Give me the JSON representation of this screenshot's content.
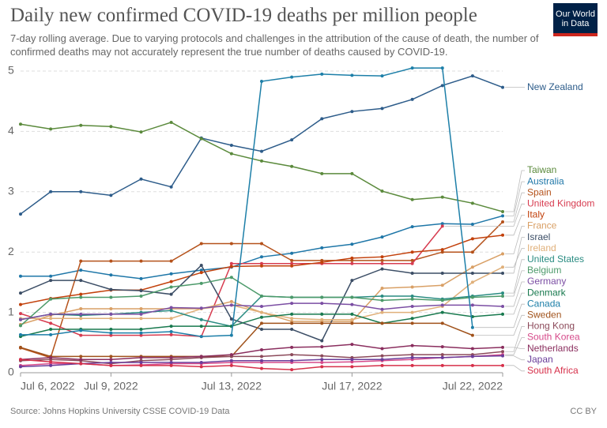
{
  "chart_data": {
    "type": "line",
    "title": "Daily new confirmed COVID-19 deaths per million people",
    "subtitle": "7-day rolling average. Due to varying protocols and challenges in the attribution of the cause of death, the number of confirmed deaths may not accurately represent the true number of deaths caused by COVID-19.",
    "logo": "Our World in Data",
    "source": "Source: Johns Hopkins University CSSE COVID-19 Data",
    "license": "CC BY",
    "x": [
      "2022-07-06",
      "2022-07-07",
      "2022-07-08",
      "2022-07-09",
      "2022-07-10",
      "2022-07-11",
      "2022-07-12",
      "2022-07-13",
      "2022-07-14",
      "2022-07-15",
      "2022-07-16",
      "2022-07-17",
      "2022-07-18",
      "2022-07-19",
      "2022-07-20",
      "2022-07-21",
      "2022-07-22"
    ],
    "xticks": [
      {
        "value": "2022-07-06",
        "label": "Jul 6, 2022"
      },
      {
        "value": "2022-07-09",
        "label": "Jul 9, 2022"
      },
      {
        "value": "2022-07-13",
        "label": "Jul 13, 2022"
      },
      {
        "value": "2022-07-17",
        "label": "Jul 17, 2022"
      },
      {
        "value": "2022-07-22",
        "label": "Jul 22, 2022"
      }
    ],
    "ylim": [
      0,
      5
    ],
    "yticks": [
      0,
      1,
      2,
      3,
      4,
      5
    ],
    "grid": true,
    "series": [
      {
        "name": "New Zealand",
        "color": "#2d5c8a",
        "values": [
          2.63,
          3.0,
          3.0,
          2.94,
          3.21,
          3.08,
          3.89,
          3.77,
          3.67,
          3.86,
          4.21,
          4.33,
          4.38,
          4.53,
          4.76,
          4.92,
          4.73
        ]
      },
      {
        "name": "Taiwan",
        "color": "#5b8a3c",
        "values": [
          4.12,
          4.04,
          4.1,
          4.08,
          3.99,
          4.15,
          3.88,
          3.63,
          3.51,
          3.42,
          3.3,
          3.3,
          3.01,
          2.87,
          2.91,
          2.81,
          2.67
        ]
      },
      {
        "name": "Australia",
        "color": "#1f77a8",
        "values": [
          1.6,
          1.6,
          1.7,
          1.62,
          1.56,
          1.64,
          1.7,
          1.75,
          1.92,
          1.98,
          2.07,
          2.13,
          2.25,
          2.42,
          2.47,
          2.46,
          2.6
        ]
      },
      {
        "name": "Spain",
        "color": "#b5521b",
        "values": [
          0.41,
          0.25,
          1.85,
          1.85,
          1.85,
          1.85,
          2.14,
          2.14,
          2.14,
          1.86,
          1.86,
          1.86,
          1.86,
          1.86,
          2.0,
          2.0,
          2.5
        ]
      },
      {
        "name": "United Kingdom",
        "color": "#d73c50",
        "values": [
          0.98,
          0.82,
          0.62,
          0.62,
          0.62,
          0.63,
          0.6,
          1.81,
          1.81,
          1.81,
          1.81,
          1.81,
          1.81,
          1.81,
          2.43,
          null,
          null
        ]
      },
      {
        "name": "Italy",
        "color": "#c2410c",
        "values": [
          1.13,
          1.23,
          1.3,
          1.37,
          1.37,
          1.51,
          1.66,
          1.76,
          1.77,
          1.77,
          1.83,
          1.9,
          1.92,
          2.0,
          2.04,
          2.22,
          2.28
        ]
      },
      {
        "name": "France",
        "color": "#d9a066",
        "values": [
          0.8,
          0.95,
          1.06,
          1.06,
          1.06,
          1.06,
          1.06,
          1.18,
          1.0,
          0.85,
          0.85,
          0.85,
          1.4,
          1.42,
          1.45,
          1.75,
          1.97
        ]
      },
      {
        "name": "Israel",
        "color": "#3c4e66",
        "values": [
          1.32,
          1.53,
          1.53,
          1.38,
          1.36,
          1.3,
          1.78,
          0.89,
          0.72,
          0.72,
          0.53,
          1.53,
          1.72,
          1.65,
          1.65,
          1.65,
          1.65
        ]
      },
      {
        "name": "Ireland",
        "color": "#e0b07a",
        "values": [
          0.9,
          0.9,
          0.9,
          0.9,
          0.9,
          0.9,
          1.06,
          1.12,
          1.0,
          0.9,
          0.88,
          0.88,
          1.0,
          1.0,
          1.1,
          1.5,
          1.75
        ]
      },
      {
        "name": "United States",
        "color": "#2a8c82",
        "values": [
          0.88,
          0.97,
          0.95,
          0.97,
          1.0,
          1.03,
          0.88,
          0.77,
          1.27,
          1.25,
          1.25,
          1.25,
          1.27,
          1.27,
          1.22,
          1.27,
          1.32
        ]
      },
      {
        "name": "Belgium",
        "color": "#4c9a6a",
        "values": [
          0.78,
          1.22,
          1.25,
          1.25,
          1.27,
          1.42,
          1.48,
          1.58,
          1.27,
          1.25,
          1.25,
          1.25,
          1.2,
          1.22,
          1.2,
          1.25,
          1.27
        ]
      },
      {
        "name": "Germany",
        "color": "#7b4ea3",
        "values": [
          0.88,
          0.97,
          0.97,
          0.97,
          0.97,
          1.08,
          1.07,
          1.12,
          1.1,
          1.15,
          1.15,
          1.13,
          1.05,
          1.1,
          1.12,
          1.12,
          1.1
        ]
      },
      {
        "name": "Denmark",
        "color": "#18794e",
        "values": [
          0.6,
          0.72,
          0.72,
          0.72,
          0.72,
          0.77,
          0.77,
          0.77,
          0.92,
          0.97,
          0.97,
          0.97,
          0.82,
          0.9,
          1.0,
          0.93,
          0.97
        ]
      },
      {
        "name": "Canada",
        "color": "#1d7fa8",
        "values": [
          0.63,
          0.63,
          0.7,
          0.66,
          0.66,
          0.68,
          0.6,
          0.62,
          4.83,
          4.9,
          4.95,
          4.93,
          4.92,
          5.05,
          5.05,
          0.75,
          null
        ]
      },
      {
        "name": "Sweden",
        "color": "#a0521b",
        "values": [
          0.42,
          0.27,
          0.27,
          0.27,
          0.27,
          0.27,
          0.27,
          0.27,
          0.82,
          0.82,
          0.82,
          0.82,
          0.82,
          0.82,
          0.82,
          0.62,
          null
        ]
      },
      {
        "name": "Hong Kong",
        "color": "#8c4a5a",
        "values": [
          0.2,
          0.22,
          0.2,
          0.15,
          0.2,
          0.22,
          0.25,
          0.27,
          0.27,
          0.3,
          0.28,
          0.25,
          0.28,
          0.3,
          0.3,
          0.3,
          0.35
        ]
      },
      {
        "name": "South Korea",
        "color": "#d64a8a",
        "values": [
          0.12,
          0.15,
          0.15,
          0.12,
          0.13,
          0.15,
          0.15,
          0.17,
          0.17,
          0.17,
          0.17,
          0.18,
          0.2,
          0.22,
          0.25,
          0.27,
          0.3
        ]
      },
      {
        "name": "Netherlands",
        "color": "#8a2e5e",
        "values": [
          0.22,
          0.25,
          0.22,
          0.22,
          0.25,
          0.25,
          0.27,
          0.3,
          0.38,
          0.42,
          0.43,
          0.47,
          0.4,
          0.45,
          0.43,
          0.4,
          0.42
        ]
      },
      {
        "name": "Japan",
        "color": "#6a3d9a",
        "values": [
          0.1,
          0.12,
          0.15,
          0.17,
          0.17,
          0.17,
          0.17,
          0.2,
          0.2,
          0.2,
          0.22,
          0.22,
          0.22,
          0.25,
          0.25,
          0.27,
          0.28
        ]
      },
      {
        "name": "South Africa",
        "color": "#d6304a",
        "values": [
          0.22,
          0.18,
          0.15,
          0.12,
          0.12,
          0.12,
          0.1,
          0.12,
          0.07,
          0.05,
          0.1,
          0.1,
          0.12,
          0.12,
          0.12,
          0.12,
          0.12
        ]
      }
    ]
  }
}
